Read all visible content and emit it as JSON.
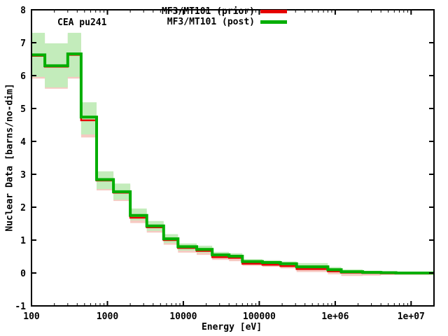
{
  "legend": [
    {
      "label": "MF3/MT101 (prior)",
      "color": "#e60000"
    },
    {
      "label": "MF3/MT101 (post)",
      "color": "#00ae00"
    }
  ],
  "chart_data": {
    "type": "line",
    "subtype": "step-histogram-with-uncertainty-bands",
    "annotation": "CEA pu241",
    "xlabel": "Energy [eV]",
    "ylabel": "Nuclear Data [barns/no-dim]",
    "x_scale": "log",
    "xlim": [
      100,
      20000000
    ],
    "ylim": [
      -1,
      8
    ],
    "grid": false,
    "legend_position": "top-center-right",
    "x_ticks": [
      {
        "value": 100,
        "label": "100"
      },
      {
        "value": 1000,
        "label": "1000"
      },
      {
        "value": 10000,
        "label": "10000"
      },
      {
        "value": 100000,
        "label": "100000"
      },
      {
        "value": 1000000,
        "label": "1e+06"
      },
      {
        "value": 10000000,
        "label": "1e+07"
      }
    ],
    "x_minor_tick_multipliers": [
      2,
      3,
      4,
      5,
      6,
      7,
      8,
      9
    ],
    "y_ticks": [
      -1,
      0,
      1,
      2,
      3,
      4,
      5,
      6,
      7,
      8
    ],
    "group_boundaries_eV": [
      100,
      150,
      300,
      450,
      720,
      1200,
      2000,
      3300,
      5500,
      8500,
      15000,
      24000,
      40000,
      60000,
      110000,
      190000,
      310000,
      800000,
      1200000,
      2300000,
      4000000,
      6300000,
      20000000
    ],
    "series": [
      {
        "name": "MF3/MT101 (prior)",
        "color": "#e60000",
        "line_width": 2.5,
        "band_color": "#f6c9c2",
        "values": [
          6.6,
          6.27,
          6.63,
          4.64,
          2.81,
          2.44,
          1.68,
          1.39,
          1.0,
          0.76,
          0.67,
          0.48,
          0.46,
          0.28,
          0.25,
          0.21,
          0.12,
          0.05,
          0.01,
          0.0,
          -0.01,
          -0.01
        ],
        "band_lo": [
          5.91,
          5.6,
          5.91,
          4.12,
          2.51,
          2.19,
          1.52,
          1.23,
          0.86,
          0.62,
          0.55,
          0.4,
          0.36,
          0.22,
          0.19,
          0.14,
          0.03,
          -0.04,
          -0.09,
          -0.08,
          -0.06,
          -0.06
        ],
        "band_hi": [
          7.26,
          6.94,
          7.26,
          5.1,
          3.05,
          2.68,
          1.89,
          1.54,
          1.14,
          0.86,
          0.78,
          0.59,
          0.55,
          0.37,
          0.34,
          0.29,
          0.24,
          0.13,
          0.06,
          0.03,
          0.02,
          0.02
        ]
      },
      {
        "name": "MF3/MT101 (post)",
        "color": "#00ae00",
        "line_width": 4,
        "band_color": "#c3ecbb",
        "values": [
          6.63,
          6.3,
          6.66,
          4.74,
          2.84,
          2.47,
          1.75,
          1.43,
          1.04,
          0.8,
          0.72,
          0.55,
          0.51,
          0.35,
          0.32,
          0.28,
          0.19,
          0.1,
          0.04,
          0.02,
          0.01,
          0.0
        ],
        "band_lo": [
          5.96,
          5.64,
          5.96,
          4.21,
          2.55,
          2.23,
          1.6,
          1.28,
          0.91,
          0.68,
          0.61,
          0.46,
          0.43,
          0.29,
          0.26,
          0.22,
          0.1,
          0.03,
          -0.03,
          -0.03,
          -0.02,
          -0.02
        ],
        "band_hi": [
          7.3,
          6.98,
          7.3,
          5.19,
          3.09,
          2.72,
          1.96,
          1.58,
          1.18,
          0.9,
          0.83,
          0.64,
          0.6,
          0.42,
          0.39,
          0.35,
          0.3,
          0.18,
          0.11,
          0.07,
          0.05,
          0.03
        ]
      }
    ],
    "colors": {
      "background": "#ffffff",
      "text": "#000000",
      "border": "#000000"
    }
  }
}
